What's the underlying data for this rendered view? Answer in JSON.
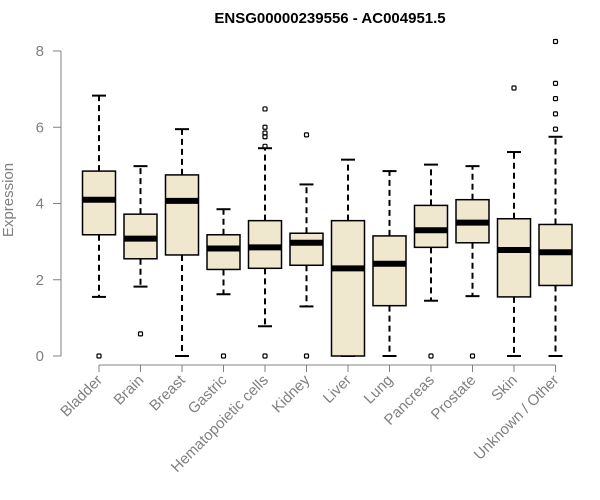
{
  "chart_data": {
    "type": "boxplot",
    "title": "ENSG00000239556 - AC004951.5",
    "xlabel": "",
    "ylabel": "Expression",
    "ylim": [
      0,
      8
    ],
    "yticks": [
      0,
      2,
      4,
      6,
      8
    ],
    "categories": [
      "Bladder",
      "Brain",
      "Breast",
      "Gastric",
      "Hematopoietic cells",
      "Kidney",
      "Liver",
      "Lung",
      "Pancreas",
      "Prostate",
      "Skin",
      "Unknown / Other"
    ],
    "boxes": [
      {
        "category": "Bladder",
        "whisker_low": 1.55,
        "q1": 3.18,
        "median": 4.1,
        "q3": 4.85,
        "whisker_high": 6.83,
        "outliers": [
          0
        ]
      },
      {
        "category": "Brain",
        "whisker_low": 1.82,
        "q1": 2.55,
        "median": 3.08,
        "q3": 3.72,
        "whisker_high": 4.98,
        "outliers": [
          0.58
        ]
      },
      {
        "category": "Breast",
        "whisker_low": 0,
        "q1": 2.65,
        "median": 4.07,
        "q3": 4.75,
        "whisker_high": 5.95,
        "outliers": []
      },
      {
        "category": "Gastric",
        "whisker_low": 1.62,
        "q1": 2.27,
        "median": 2.82,
        "q3": 3.18,
        "whisker_high": 3.85,
        "outliers": [
          0
        ]
      },
      {
        "category": "Hematopoietic cells",
        "whisker_low": 0.78,
        "q1": 2.3,
        "median": 2.85,
        "q3": 3.55,
        "whisker_high": 5.45,
        "outliers": [
          0,
          5.5,
          5.75,
          5.85,
          6.0,
          6.48
        ]
      },
      {
        "category": "Kidney",
        "whisker_low": 1.3,
        "q1": 2.38,
        "median": 2.97,
        "q3": 3.22,
        "whisker_high": 4.5,
        "outliers": [
          0,
          5.8
        ]
      },
      {
        "category": "Liver",
        "whisker_low": 0,
        "q1": 0,
        "median": 2.3,
        "q3": 3.55,
        "whisker_high": 5.15,
        "outliers": []
      },
      {
        "category": "Lung",
        "whisker_low": 0,
        "q1": 1.32,
        "median": 2.42,
        "q3": 3.15,
        "whisker_high": 4.85,
        "outliers": []
      },
      {
        "category": "Pancreas",
        "whisker_low": 1.45,
        "q1": 2.85,
        "median": 3.3,
        "q3": 3.95,
        "whisker_high": 5.02,
        "outliers": [
          0
        ]
      },
      {
        "category": "Prostate",
        "whisker_low": 1.57,
        "q1": 2.97,
        "median": 3.5,
        "q3": 4.1,
        "whisker_high": 4.98,
        "outliers": [
          0
        ]
      },
      {
        "category": "Skin",
        "whisker_low": 0,
        "q1": 1.55,
        "median": 2.78,
        "q3": 3.6,
        "whisker_high": 5.35,
        "outliers": [
          7.03
        ]
      },
      {
        "category": "Unknown / Other",
        "whisker_low": 0,
        "q1": 1.85,
        "median": 2.72,
        "q3": 3.45,
        "whisker_high": 5.75,
        "outliers": [
          5.95,
          6.35,
          6.75,
          7.15,
          8.25
        ]
      }
    ],
    "box_fill": "#efe8cf",
    "box_stroke": "#000000",
    "axis_color": "#808080"
  }
}
